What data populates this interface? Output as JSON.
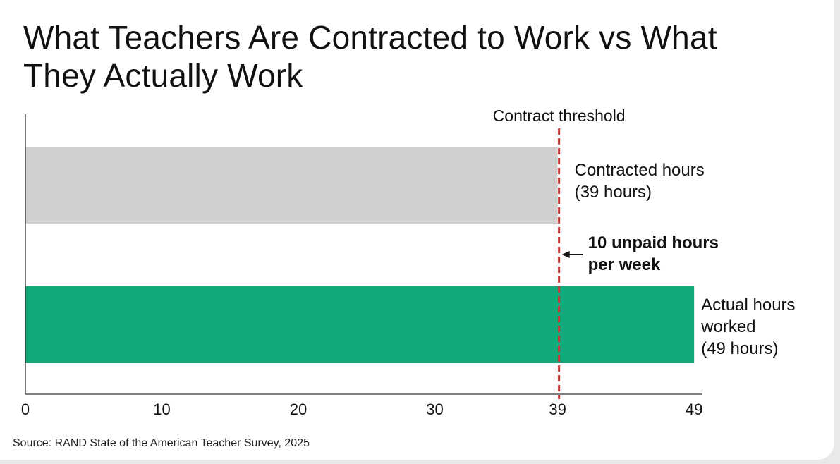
{
  "chart_data": {
    "type": "bar",
    "orientation": "horizontal",
    "title": "What Teachers Are Contracted to Work vs What They Actually Work",
    "xlabel": "",
    "ylabel": "",
    "xlim": [
      0,
      50
    ],
    "x_ticks": [
      0,
      10,
      20,
      30,
      39,
      49
    ],
    "grid": false,
    "legend": "none",
    "bars": [
      {
        "label_lines": [
          "Contracted hours",
          "(39 hours)"
        ],
        "value": 39,
        "color": "#cfcfcf"
      },
      {
        "label_lines": [
          "Actual hours",
          "worked",
          "(49 hours)"
        ],
        "value": 49,
        "color": "#12a97b"
      }
    ],
    "threshold": {
      "value": 39,
      "label": "Contract threshold",
      "color": "#d32f2f"
    },
    "annotation": {
      "lines": [
        "10 unpaid hours",
        "per week"
      ],
      "arrow": "left",
      "points_to": "threshold"
    }
  },
  "source": "Source: RAND State of the American Teacher Survey, 2025"
}
